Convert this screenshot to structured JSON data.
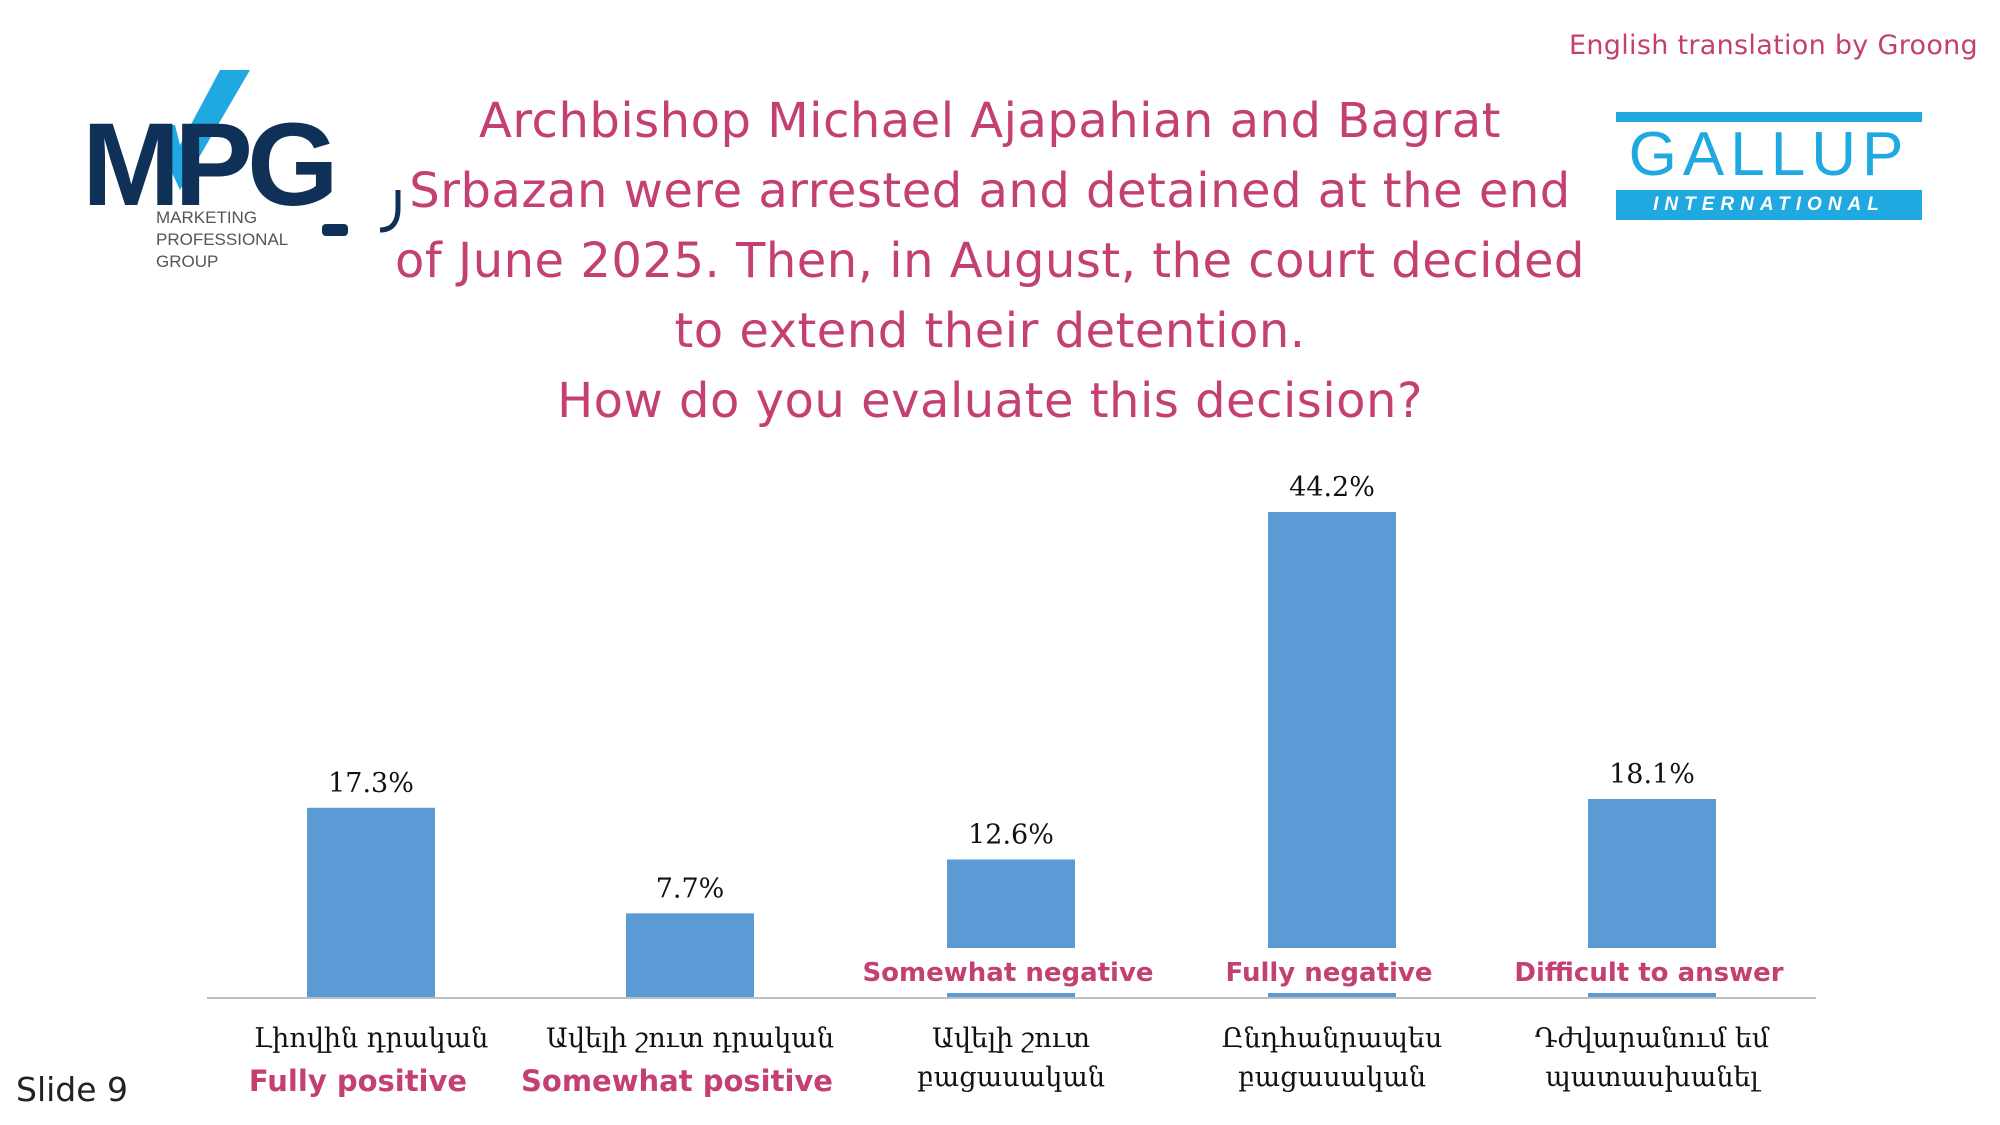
{
  "header": {
    "credit": "English translation by Groong",
    "question_lines": [
      "Archbishop Michael Ajapahian and Bagrat",
      "Srbazan were arrested and detained at the end",
      "of June 2025. Then, in August, the court decided",
      "to extend their detention.",
      "How do you evaluate this decision?"
    ]
  },
  "logos": {
    "mpg": {
      "text": "MPG",
      "subtitle_lines": [
        "MARKETING",
        "PROFESSIONAL",
        "GROUP"
      ]
    },
    "gallup": {
      "word": "GALLUP",
      "sub": "INTERNATIONAL"
    }
  },
  "footer": {
    "slide": "Slide 9"
  },
  "colors": {
    "accent": "#c43f72",
    "bar": "#5b9bd5",
    "axis": "#bfbfbf",
    "logo_navy": "#0f3057",
    "logo_cyan": "#20a9e0"
  },
  "chart_data": {
    "type": "bar",
    "categories": [
      {
        "armenian": [
          "Լիովին դրական"
        ],
        "english": "Fully positive",
        "english_position": "below"
      },
      {
        "armenian": [
          "Ավելի շուտ դրական"
        ],
        "english": "Somewhat positive",
        "english_position": "below"
      },
      {
        "armenian": [
          "Ավելի շուտ",
          "բացասական"
        ],
        "english": "Somewhat negative",
        "english_position": "above-axis"
      },
      {
        "armenian": [
          "Ընդհանրապես",
          "բացասական"
        ],
        "english": "Fully negative",
        "english_position": "above-axis"
      },
      {
        "armenian": [
          "Դժվարանում եմ",
          "պատասխանել"
        ],
        "english": "Difficult to answer",
        "english_position": "above-axis"
      }
    ],
    "values": [
      17.3,
      7.7,
      12.6,
      44.2,
      18.1
    ],
    "value_labels": [
      "17.3%",
      "7.7%",
      "12.6%",
      "44.2%",
      "18.1%"
    ],
    "unit": "%",
    "ylim": [
      0,
      44.2
    ],
    "grid": false,
    "legend": "none"
  }
}
